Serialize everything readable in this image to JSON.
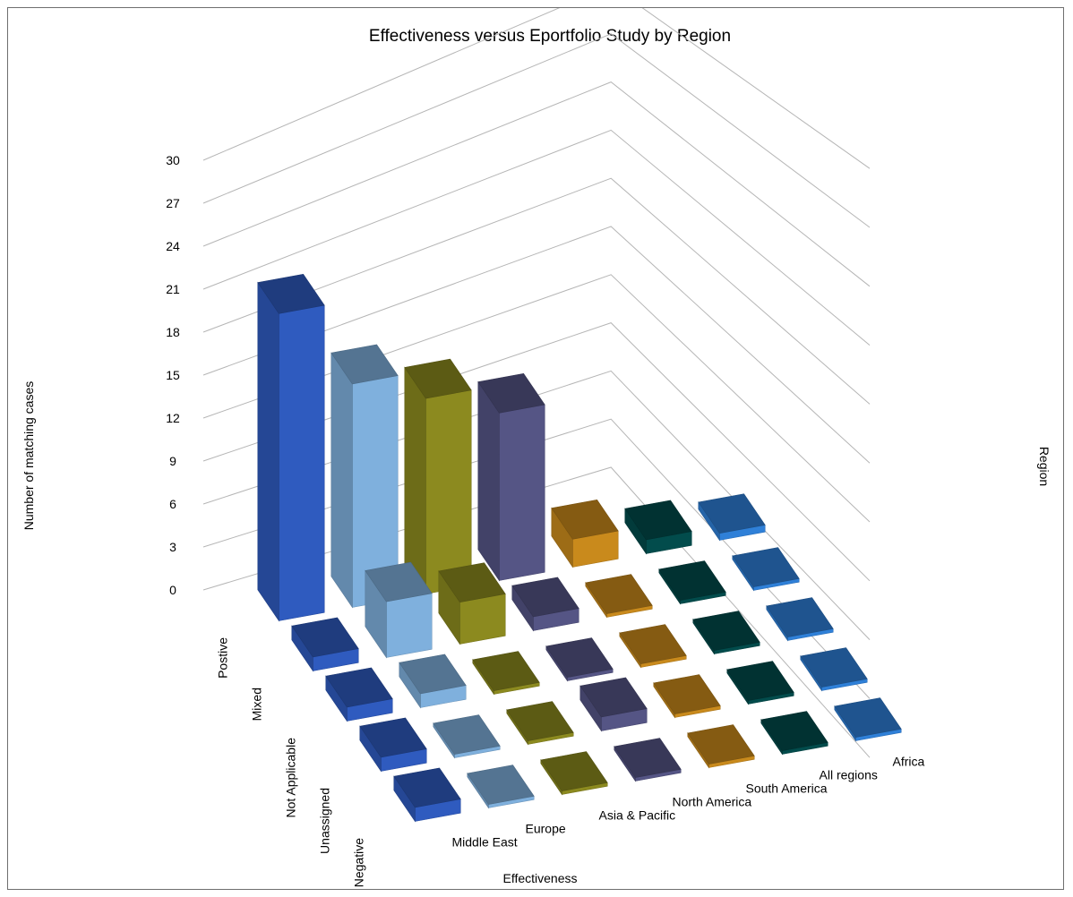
{
  "chart_data": {
    "type": "bar",
    "variant": "3d-bar",
    "title": "Effectiveness versus Eportfolio Study by Region",
    "xlabel": "Effectiveness",
    "ylabel": "Number of matching cases",
    "zlabel": "Region",
    "categories": [
      "Postive",
      "Mixed",
      "Not Applicable",
      "Unassigned",
      "Negative"
    ],
    "yticks": [
      "0",
      "3",
      "6",
      "9",
      "12",
      "15",
      "18",
      "21",
      "24",
      "27",
      "30"
    ],
    "ylim": [
      0,
      30
    ],
    "series": [
      {
        "name": "Middle East",
        "color": "#2f5bbf",
        "values": [
          22,
          1,
          1,
          1,
          1
        ]
      },
      {
        "name": "Europe",
        "color": "#7fb0dd",
        "values": [
          16,
          4,
          1,
          0,
          0
        ]
      },
      {
        "name": "Asia & Pacific",
        "color": "#8c8a1f",
        "values": [
          14,
          3,
          0,
          0,
          0
        ]
      },
      {
        "name": "North America",
        "color": "#555585",
        "values": [
          12,
          1,
          0,
          1,
          0
        ]
      },
      {
        "name": "South America",
        "color": "#c98a1c",
        "values": [
          2,
          0,
          0,
          0,
          0
        ]
      },
      {
        "name": "All regions",
        "color": "#024c4c",
        "values": [
          1,
          0,
          0,
          0,
          0
        ]
      },
      {
        "name": "Africa",
        "color": "#2f80d8",
        "values": [
          0.5,
          0,
          0,
          0,
          0
        ]
      }
    ],
    "grid": true,
    "legend": "none"
  }
}
